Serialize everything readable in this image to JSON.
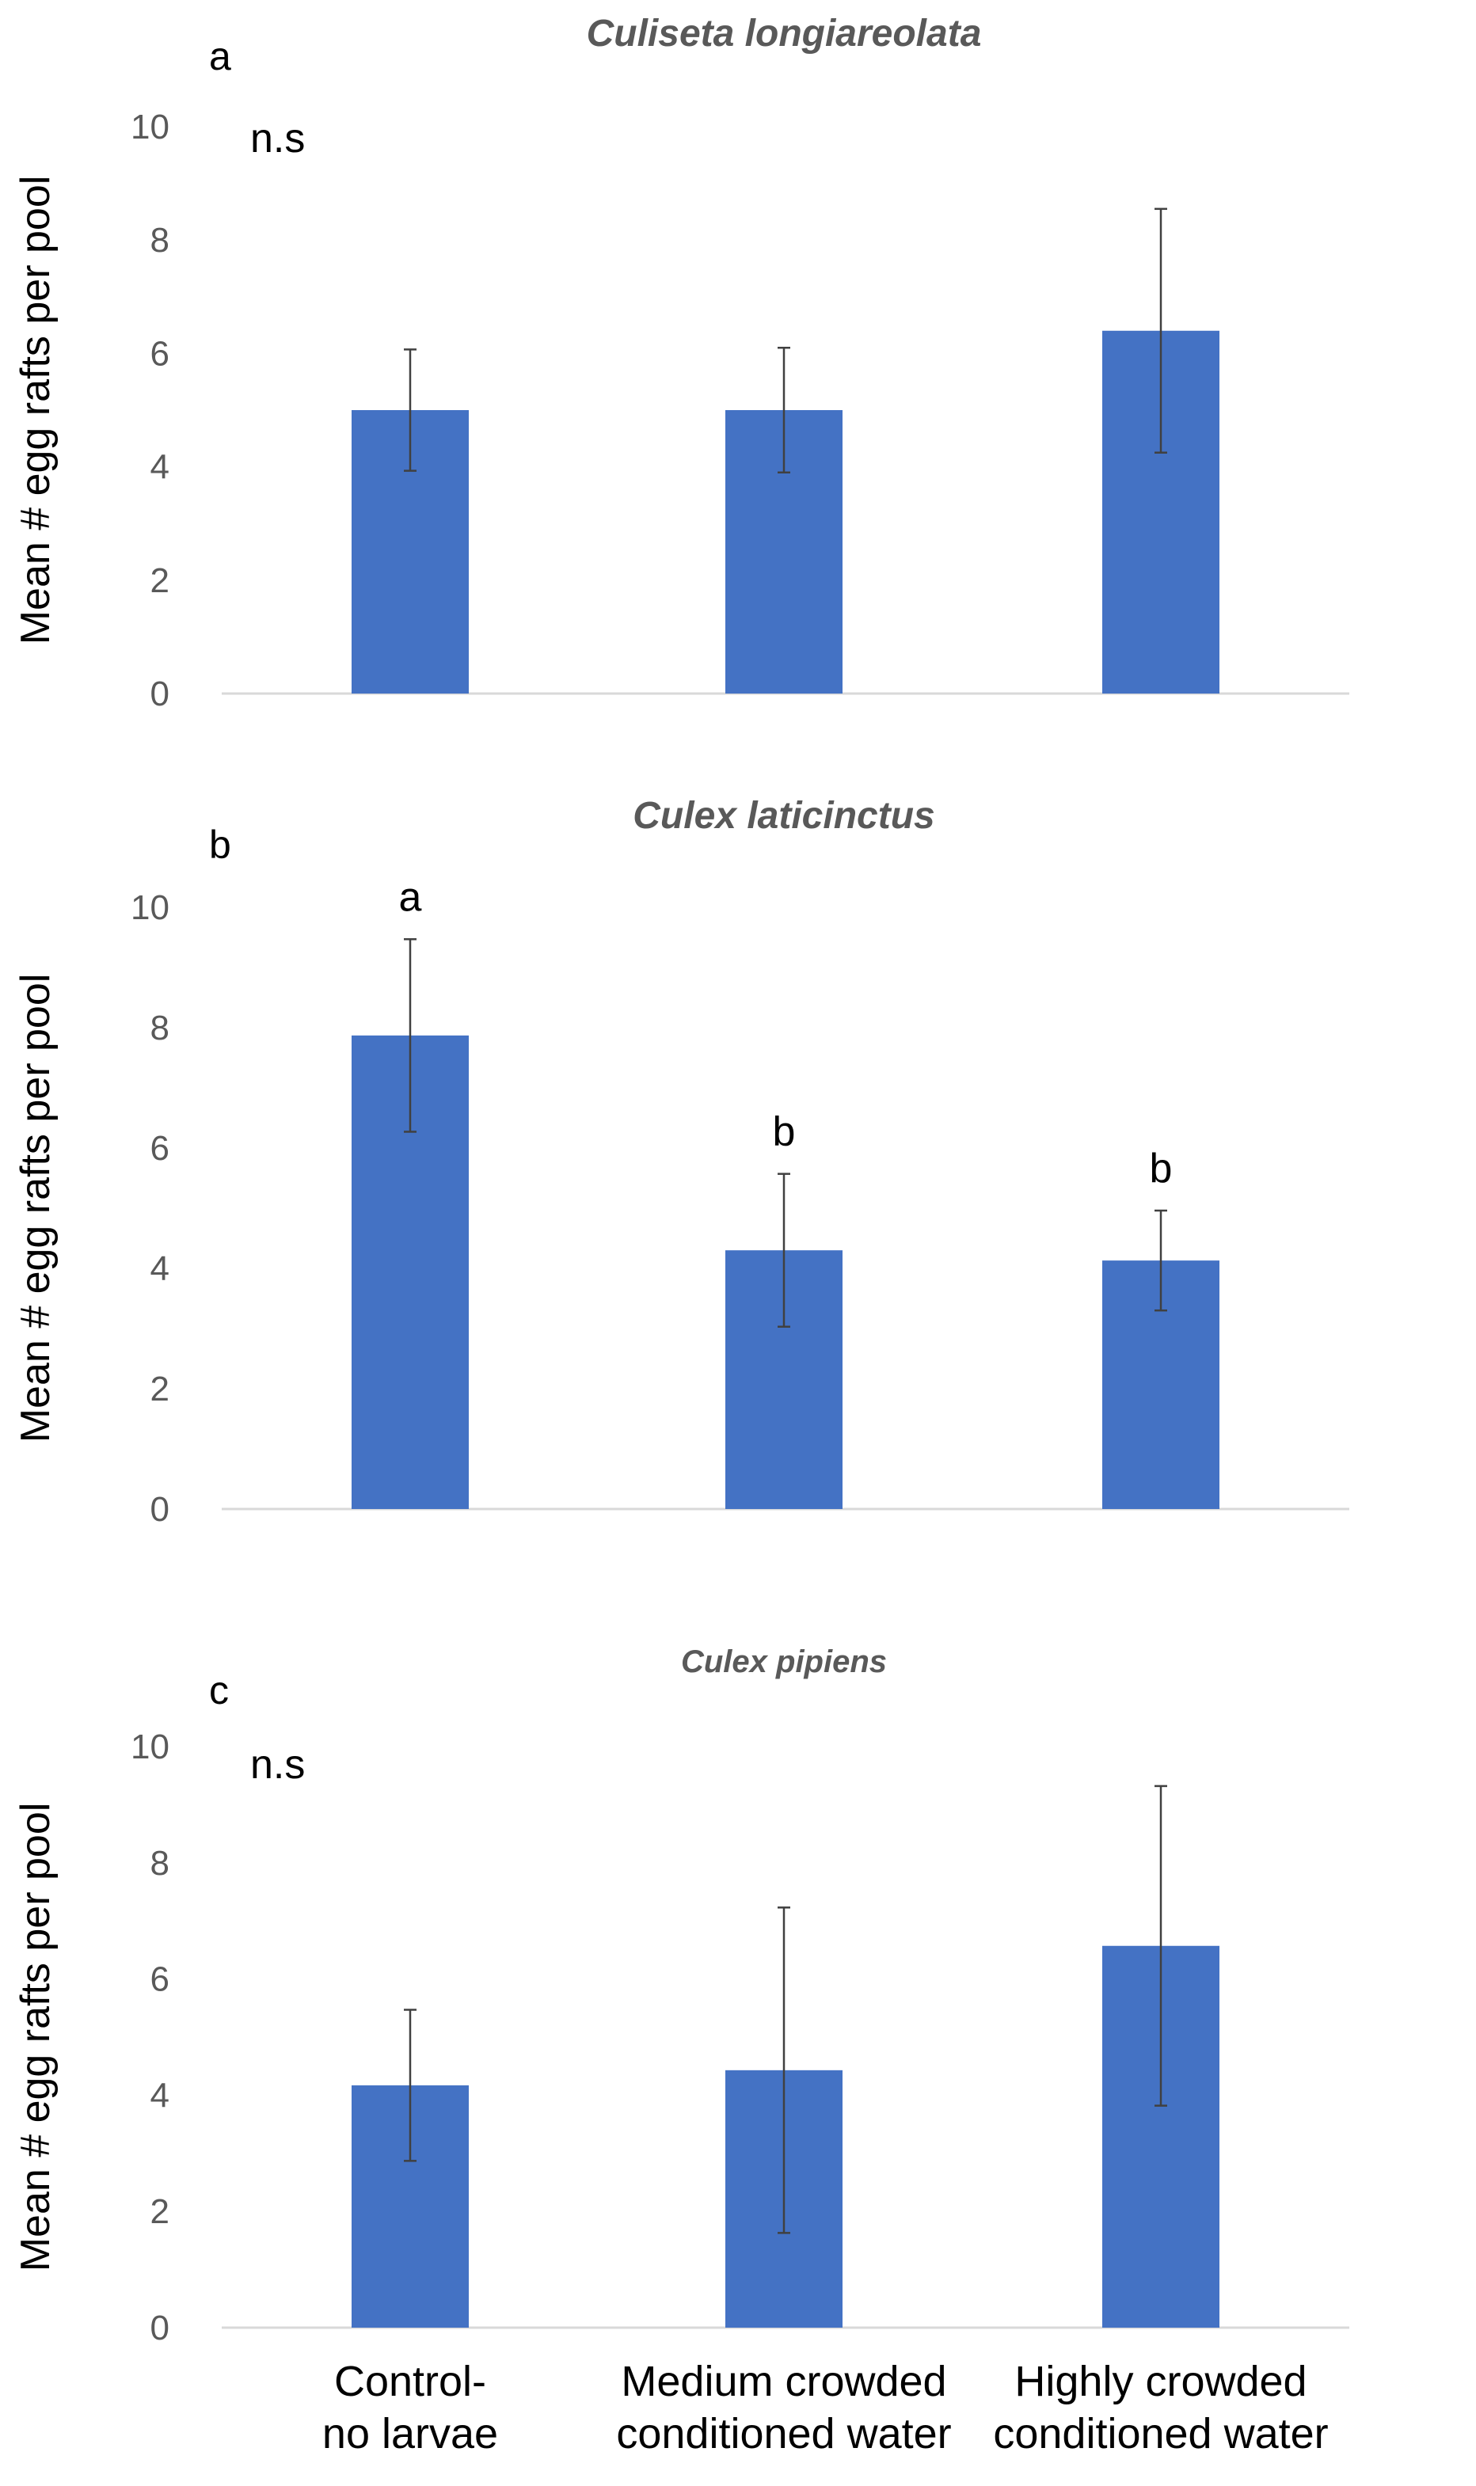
{
  "chart_data": [
    {
      "type": "bar",
      "panel_label": "a",
      "title": "Culiseta  longiareolata",
      "ylabel": "Mean # egg rafts per pool",
      "ylim": [
        0,
        10
      ],
      "yticks": [
        "0",
        "2",
        "4",
        "6",
        "8",
        "10"
      ],
      "categories": [
        "Control- no larvae",
        "Medium crowded conditioned water",
        "Highly crowded conditioned water"
      ],
      "series": [
        {
          "name": "Mean egg rafts",
          "values": [
            5.0,
            5.0,
            6.4
          ],
          "error": [
            1.07,
            1.1,
            2.15
          ]
        }
      ],
      "bar_labels": [
        "",
        "",
        ""
      ],
      "annotation": "n.s",
      "color": "#4472c4"
    },
    {
      "type": "bar",
      "panel_label": "b",
      "title": "Culex laticinctus",
      "ylabel": "Mean # egg rafts per pool",
      "ylim": [
        0,
        10
      ],
      "yticks": [
        "0",
        "2",
        "4",
        "6",
        "8",
        "10"
      ],
      "categories": [
        "Control- no larvae",
        "Medium crowded conditioned water",
        "Highly crowded conditioned water"
      ],
      "series": [
        {
          "name": "Mean egg rafts",
          "values": [
            7.87,
            4.3,
            4.13
          ],
          "error": [
            1.6,
            1.27,
            0.83
          ]
        }
      ],
      "bar_labels": [
        "a",
        "b",
        "b"
      ],
      "annotation": "",
      "color": "#4472c4"
    },
    {
      "type": "bar",
      "panel_label": "c",
      "title": "Culex pipiens",
      "ylabel": "Mean # egg rafts per pool",
      "ylim": [
        0,
        10
      ],
      "yticks": [
        "0",
        "2",
        "4",
        "6",
        "8",
        "10"
      ],
      "categories": [
        "Control- no larvae",
        "Medium crowded conditioned water",
        "Highly crowded conditioned water"
      ],
      "series": [
        {
          "name": "Mean egg rafts",
          "values": [
            4.17,
            4.43,
            6.57
          ],
          "error": [
            1.3,
            2.8,
            2.75
          ]
        }
      ],
      "bar_labels": [
        "",
        "",
        ""
      ],
      "annotation": "n.s",
      "color": "#4472c4"
    }
  ],
  "x_axis": {
    "category_lines": [
      [
        "Control-",
        "no larvae"
      ],
      [
        "Medium crowded",
        "conditioned water"
      ],
      [
        "Highly crowded",
        "conditioned water"
      ]
    ]
  }
}
